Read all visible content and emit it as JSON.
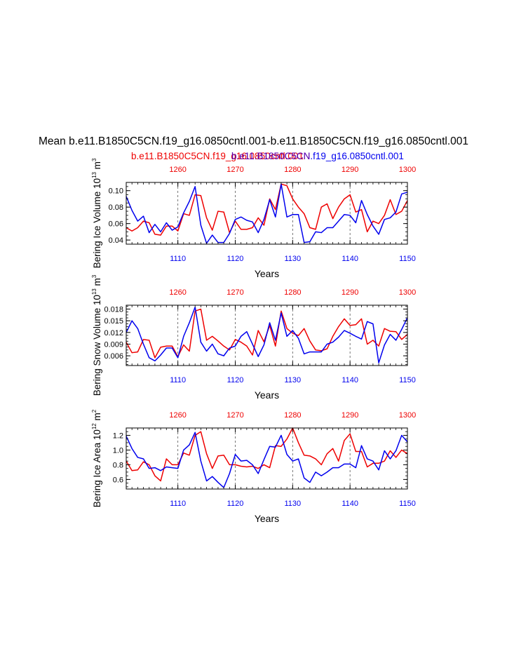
{
  "title": "Mean b.e11.B1850C5CN.f19_g16.0850cntl.001-b.e11.B1850C5CN.f19_g16.0850cntl.001",
  "subtitle_red": "b.e11.B1850C5CN.f19_g16.0850cntl.001",
  "subtitle_blue": "b.e11.B1850C5CN.f19_g16.0850cntl.001",
  "subtitle_overlap": "b.e11.B1850C5CN",
  "colors": {
    "red": "#ee0000",
    "blue": "#0000ee",
    "black": "#000000"
  },
  "chart_data": [
    {
      "type": "line",
      "ylabel": "Bering Ice Volume 10^13 m^3",
      "ylabel_main": "Bering Ice Volume 10",
      "ylabel_exp": "13",
      "ylabel_unit": "m",
      "ylabel_unit_exp": "3",
      "xlabel": "Years",
      "ylim": [
        0.035,
        0.11
      ],
      "yticks": [
        0.04,
        0.06,
        0.08,
        0.1
      ],
      "ytick_labels": [
        "0.04",
        "0.06",
        "0.08",
        "0.10"
      ],
      "bottom_axis": {
        "range": [
          1101,
          1150
        ],
        "ticks": [
          1110,
          1120,
          1130,
          1140,
          1150
        ],
        "labels": [
          "1110",
          "1120",
          "1130",
          "1140",
          "1150"
        ]
      },
      "top_axis": {
        "range": [
          1251,
          1300
        ],
        "ticks": [
          1260,
          1270,
          1280,
          1290,
          1300
        ],
        "labels": [
          "1260",
          "1270",
          "1280",
          "1290",
          "1300"
        ]
      },
      "series": [
        {
          "name": "b.e11.B1850C5CN.f19_g16.0850cntl.001 (red)",
          "color": "red",
          "values": [
            0.055,
            0.051,
            0.055,
            0.063,
            0.061,
            0.047,
            0.046,
            0.057,
            0.057,
            0.051,
            0.072,
            0.07,
            0.095,
            0.094,
            0.067,
            0.052,
            0.075,
            0.074,
            0.049,
            0.063,
            0.053,
            0.053,
            0.055,
            0.067,
            0.058,
            0.09,
            0.077,
            0.108,
            0.106,
            0.09,
            0.08,
            0.072,
            0.055,
            0.053,
            0.08,
            0.084,
            0.066,
            0.08,
            0.09,
            0.095,
            0.074,
            0.077,
            0.05,
            0.063,
            0.06,
            0.07,
            0.089,
            0.071,
            0.075,
            0.088
          ]
        },
        {
          "name": "b.e11.B1850C5CN.f19_g16.0850cntl.001 (blue)",
          "color": "blue",
          "values": [
            0.093,
            0.076,
            0.063,
            0.069,
            0.049,
            0.059,
            0.05,
            0.061,
            0.052,
            0.056,
            0.073,
            0.087,
            0.105,
            0.058,
            0.036,
            0.046,
            0.037,
            0.037,
            0.048,
            0.065,
            0.068,
            0.064,
            0.062,
            0.049,
            0.065,
            0.089,
            0.068,
            0.108,
            0.068,
            0.071,
            0.071,
            0.037,
            0.038,
            0.05,
            0.049,
            0.055,
            0.055,
            0.063,
            0.071,
            0.07,
            0.061,
            0.088,
            0.071,
            0.057,
            0.047,
            0.065,
            0.067,
            0.074,
            0.096,
            0.098
          ]
        }
      ]
    },
    {
      "type": "line",
      "ylabel": "Bering Snow Volume 10^13 m^3",
      "ylabel_main": "Bering Snow Volume 10",
      "ylabel_exp": "13",
      "ylabel_unit": "m",
      "ylabel_unit_exp": "3",
      "xlabel": "Years",
      "ylim": [
        0.0035,
        0.019
      ],
      "yticks": [
        0.006,
        0.009,
        0.012,
        0.015,
        0.018
      ],
      "ytick_labels": [
        "0.006",
        "0.009",
        "0.012",
        "0.015",
        "0.018"
      ],
      "bottom_axis": {
        "range": [
          1101,
          1150
        ],
        "ticks": [
          1110,
          1120,
          1130,
          1140,
          1150
        ],
        "labels": [
          "1110",
          "1120",
          "1130",
          "1140",
          "1150"
        ]
      },
      "top_axis": {
        "range": [
          1251,
          1300
        ],
        "ticks": [
          1260,
          1270,
          1280,
          1290,
          1300
        ],
        "labels": [
          "1260",
          "1270",
          "1280",
          "1290",
          "1300"
        ]
      },
      "series": [
        {
          "name": "b.e11.B1850C5CN.f19_g16.0850cntl.001 (red)",
          "color": "red",
          "values": [
            0.0095,
            0.0068,
            0.007,
            0.0102,
            0.01,
            0.0055,
            0.0082,
            0.0085,
            0.0085,
            0.0058,
            0.0088,
            0.0072,
            0.0175,
            0.018,
            0.01,
            0.011,
            0.0098,
            0.0085,
            0.0075,
            0.0102,
            0.0095,
            0.0085,
            0.0062,
            0.0125,
            0.0096,
            0.0138,
            0.0085,
            0.0175,
            0.013,
            0.0118,
            0.0112,
            0.013,
            0.0098,
            0.0075,
            0.0073,
            0.0078,
            0.011,
            0.0135,
            0.0155,
            0.0138,
            0.014,
            0.0155,
            0.009,
            0.01,
            0.0085,
            0.013,
            0.0123,
            0.0122,
            0.0102,
            0.0115
          ]
        },
        {
          "name": "b.e11.B1850C5CN.f19_g16.0850cntl.001 (blue)",
          "color": "blue",
          "values": [
            0.012,
            0.015,
            0.013,
            0.009,
            0.0055,
            0.0047,
            0.0062,
            0.008,
            0.008,
            0.0055,
            0.011,
            0.0145,
            0.0185,
            0.0095,
            0.0072,
            0.009,
            0.0065,
            0.006,
            0.008,
            0.0085,
            0.011,
            0.0122,
            0.009,
            0.0058,
            0.0088,
            0.0145,
            0.01,
            0.017,
            0.011,
            0.0125,
            0.0105,
            0.0065,
            0.007,
            0.007,
            0.007,
            0.009,
            0.0095,
            0.0108,
            0.0125,
            0.0118,
            0.011,
            0.0103,
            0.0148,
            0.0142,
            0.0042,
            0.0088,
            0.0115,
            0.01,
            0.0128,
            0.0158
          ]
        }
      ]
    },
    {
      "type": "line",
      "ylabel": "Bering Ice Area 10^12 m^2",
      "ylabel_main": "Bering Ice Area 10",
      "ylabel_exp": "12",
      "ylabel_unit": "m",
      "ylabel_unit_exp": "2",
      "xlabel": "Years",
      "ylim": [
        0.47,
        1.3
      ],
      "yticks": [
        0.6,
        0.8,
        1.0,
        1.2
      ],
      "ytick_labels": [
        "0.6",
        "0.8",
        "1.0",
        "1.2"
      ],
      "bottom_axis": {
        "range": [
          1101,
          1150
        ],
        "ticks": [
          1110,
          1120,
          1130,
          1140,
          1150
        ],
        "labels": [
          "1110",
          "1120",
          "1130",
          "1140",
          "1150"
        ]
      },
      "top_axis": {
        "range": [
          1251,
          1300
        ],
        "ticks": [
          1260,
          1270,
          1280,
          1290,
          1300
        ],
        "labels": [
          "1260",
          "1270",
          "1280",
          "1290",
          "1300"
        ]
      },
      "series": [
        {
          "name": "b.e11.B1850C5CN.f19_g16.0850cntl.001 (red)",
          "color": "red",
          "values": [
            0.85,
            0.72,
            0.73,
            0.84,
            0.8,
            0.65,
            0.58,
            0.88,
            0.8,
            0.8,
            0.96,
            0.93,
            1.2,
            1.25,
            0.95,
            0.75,
            0.92,
            0.93,
            0.8,
            0.8,
            0.78,
            0.77,
            0.78,
            0.75,
            0.8,
            0.76,
            1.06,
            1.05,
            1.15,
            1.3,
            1.1,
            0.93,
            0.92,
            0.88,
            0.8,
            0.95,
            1.02,
            0.85,
            1.13,
            1.22,
            0.98,
            0.98,
            0.77,
            0.82,
            0.82,
            0.85,
            0.99,
            0.9,
            1.0,
            0.95
          ]
        },
        {
          "name": "b.e11.B1850C5CN.f19_g16.0850cntl.001 (blue)",
          "color": "blue",
          "values": [
            1.19,
            1.02,
            0.9,
            0.88,
            0.75,
            0.76,
            0.72,
            0.77,
            0.76,
            0.75,
            1.0,
            1.07,
            1.24,
            0.85,
            0.58,
            0.64,
            0.56,
            0.49,
            0.68,
            0.94,
            0.85,
            0.86,
            0.8,
            0.68,
            0.87,
            1.05,
            1.04,
            1.2,
            0.94,
            0.85,
            0.88,
            0.62,
            0.56,
            0.7,
            0.65,
            0.7,
            0.76,
            0.76,
            0.81,
            0.81,
            0.76,
            1.06,
            0.88,
            0.85,
            0.73,
            0.99,
            0.88,
            0.99,
            1.2,
            1.11
          ]
        }
      ]
    }
  ]
}
